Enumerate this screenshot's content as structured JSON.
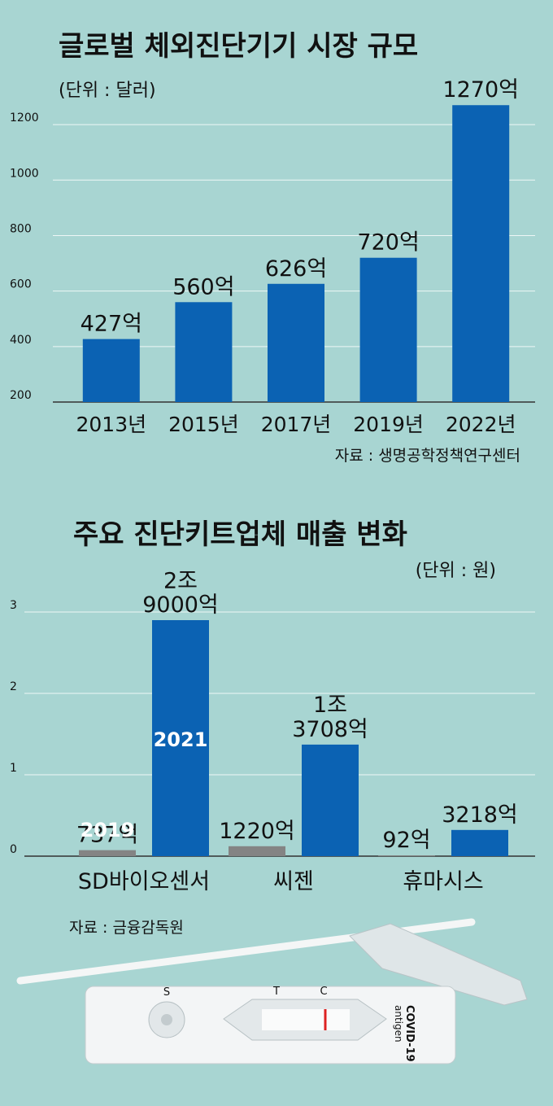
{
  "chart_data": [
    {
      "type": "bar",
      "title": "글로벌 체외진단기기 시장 규모",
      "unit": "(단위 : 달러)",
      "source": "자료 : 생명공학정책연구센터",
      "categories": [
        "2013년",
        "2015년",
        "2017년",
        "2019년",
        "2022년"
      ],
      "values": [
        427,
        560,
        626,
        720,
        1270
      ],
      "value_labels": [
        "427억",
        "560억",
        "626억",
        "720억",
        "1270억"
      ],
      "color": "#0b62b3",
      "ylim": [
        200,
        1300
      ],
      "yticks": [
        200,
        400,
        600,
        800,
        1000,
        1200
      ],
      "grid": true
    },
    {
      "type": "grouped_bar",
      "title": "주요 진단키트업체 매출 변화",
      "unit": "(단위 : 원)",
      "source": "자료 : 금융감독원",
      "categories": [
        "SD바이오센서",
        "씨젠",
        "휴마시스"
      ],
      "series": [
        {
          "name": "2019",
          "color": "#848484",
          "values": [
            0.0737,
            0.122,
            0.0092
          ],
          "value_labels": [
            "737억",
            "1220억",
            "92억"
          ]
        },
        {
          "name": "2021",
          "color": "#0b62b3",
          "values": [
            2.9,
            1.3708,
            0.3218
          ],
          "value_labels": [
            "2조\n9000억",
            "1조\n3708억",
            "3218억"
          ]
        }
      ],
      "ylim": [
        0,
        3.2
      ],
      "yticks": [
        0,
        1,
        2,
        3
      ],
      "grid": true
    }
  ],
  "kit_labels": [
    "S",
    "T",
    "C",
    "COVID-19",
    "antigen"
  ]
}
